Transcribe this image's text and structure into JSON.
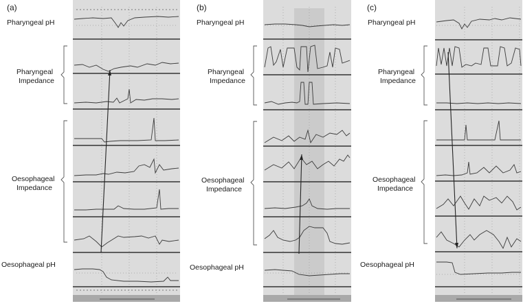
{
  "panels": [
    {
      "letter": "(a)",
      "labels": {
        "pharyngeal_ph": "Pharyngeal pH",
        "pharyngeal_impedance_1": "Pharyngeal",
        "pharyngeal_impedance_2": "Impedance",
        "oesophageal_impedance_1": "Oesophageal",
        "oesophageal_impedance_2": "Impedance",
        "oesophageal_ph": "Oesophageal pH"
      }
    },
    {
      "letter": "(b)",
      "labels": {
        "pharyngeal_ph": "Pharyngeal pH",
        "pharyngeal_impedance_1": "Pharyngeal",
        "pharyngeal_impedance_2": "Impedance",
        "oesophageal_impedance_1": "Oesophageal",
        "oesophageal_impedance_2": "Impedance",
        "oesophageal_ph": "Oesophageal pH"
      }
    },
    {
      "letter": "(c)",
      "labels": {
        "pharyngeal_ph": "Pharyngeal pH",
        "pharyngeal_impedance_1": "Pharyngeal",
        "pharyngeal_impedance_2": "Impedance",
        "oesophageal_impedance_1": "Oesophageal",
        "oesophageal_impedance_2": "Impedance",
        "oesophageal_ph": "Oesophageal pH"
      }
    }
  ],
  "colors": {
    "trace_bg": "#dcdcdc",
    "highlight_bg": "#cbcbcb",
    "trace": "#3a3a3a",
    "footer_bar": "#a9a9a9"
  }
}
